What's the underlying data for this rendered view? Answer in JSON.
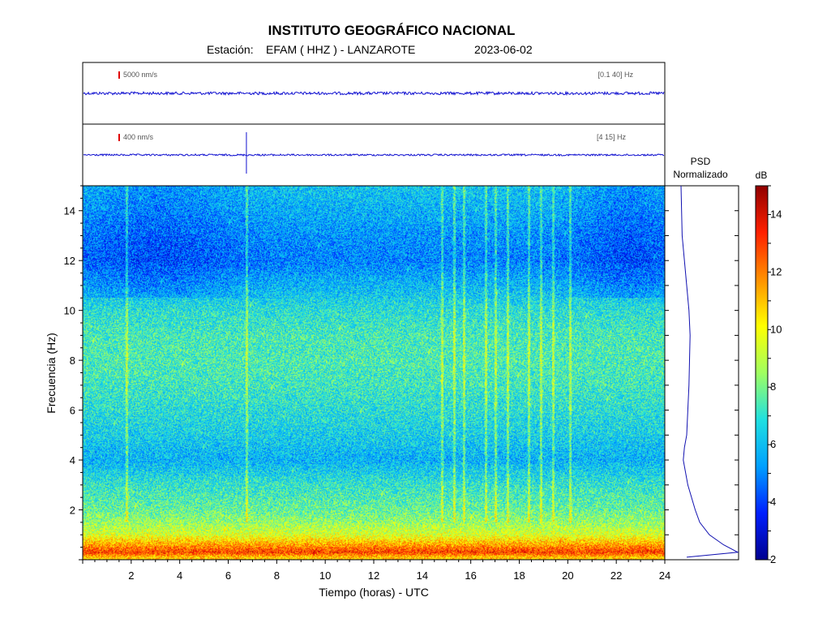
{
  "header": {
    "institution": "INSTITUTO GEOGRÁFICO NACIONAL",
    "station_label": "Estación:",
    "station": "EFAM ( HHZ ) - LANZAROTE",
    "date": "2023-06-02"
  },
  "traces": [
    {
      "scale": "5000 nm/s",
      "band": "[0.1 40] Hz"
    },
    {
      "scale": "400 nm/s",
      "band": "[4 15] Hz",
      "event_hour": 6.75
    }
  ],
  "chart_data": {
    "type": "heatmap",
    "title": "",
    "xlabel": "Tiempo (horas) - UTC",
    "ylabel": "Frecuencia  (Hz)",
    "xlim": [
      0,
      24
    ],
    "ylim": [
      0,
      15
    ],
    "x_ticks": [
      2,
      4,
      6,
      8,
      10,
      12,
      14,
      16,
      18,
      20,
      22,
      24
    ],
    "y_ticks": [
      2,
      4,
      6,
      8,
      10,
      12,
      14
    ],
    "colorbar": {
      "label": "dB",
      "range": [
        2,
        15
      ],
      "ticks": [
        2,
        4,
        6,
        8,
        10,
        12,
        14
      ],
      "colors": [
        "#00008f",
        "#0020ff",
        "#00a0ff",
        "#20e0e0",
        "#a0ff60",
        "#ffff00",
        "#ff9000",
        "#ff2000",
        "#900000"
      ]
    },
    "psd": {
      "title_line1": "PSD",
      "title_line2": "Normalizado",
      "frequency_hz": [
        0.1,
        0.3,
        0.6,
        1.0,
        1.5,
        2.0,
        3.0,
        4.0,
        4.5,
        5.0,
        6.0,
        7.0,
        8.0,
        9.0,
        10.0,
        11.0,
        12.0,
        13.0,
        14.0,
        15.0
      ],
      "level": [
        0.1,
        1.0,
        0.75,
        0.5,
        0.33,
        0.25,
        0.12,
        0.04,
        0.06,
        0.1,
        0.12,
        0.14,
        0.15,
        0.16,
        0.14,
        0.1,
        0.06,
        0.02,
        0.01,
        0.0
      ]
    },
    "spectrogram_profile": {
      "frequency_hz": [
        0.1,
        0.3,
        0.6,
        1.0,
        1.5,
        2.0,
        3.0,
        4.0,
        5.0,
        6.0,
        7.0,
        8.0,
        9.0,
        10.0,
        11.0,
        12.0,
        13.0,
        14.0,
        15.0
      ],
      "db": [
        11.0,
        13.0,
        11.5,
        9.5,
        8.5,
        7.8,
        7.0,
        5.8,
        6.4,
        6.8,
        7.2,
        7.4,
        7.3,
        6.8,
        5.9,
        5.0,
        5.3,
        5.8,
        6.2
      ]
    },
    "spectrogram_transient_hours": [
      1.8,
      6.75,
      14.8,
      15.3,
      15.7,
      16.6,
      17.0,
      17.5,
      18.4,
      18.9,
      19.4,
      20.1
    ]
  }
}
